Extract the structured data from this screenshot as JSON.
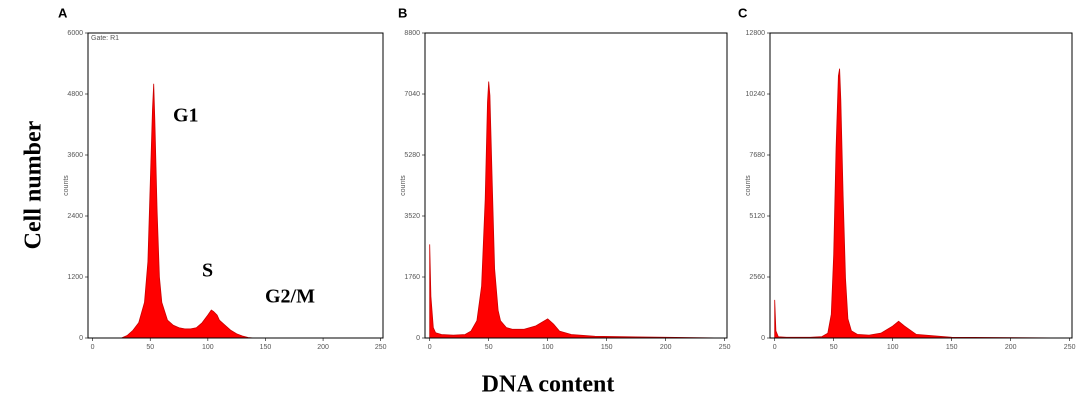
{
  "figure": {
    "y_label": "Cell number",
    "x_label": "DNA content"
  },
  "chart_data": [
    {
      "type": "area",
      "label": "A",
      "gate": "Gate: R1",
      "y_label": "counts",
      "color": "#ff0000",
      "xlim": [
        -4,
        252
      ],
      "xticks": [
        0,
        50,
        100,
        150,
        200,
        250
      ],
      "ylim": [
        0,
        6000
      ],
      "yticks": [
        0,
        1200,
        2400,
        3600,
        4800,
        6000
      ],
      "annotations": [
        "G1",
        "S",
        "G2/M"
      ],
      "x": [
        25,
        30,
        35,
        40,
        45,
        48,
        50,
        52,
        53,
        54,
        56,
        58,
        60,
        65,
        70,
        75,
        80,
        85,
        90,
        95,
        100,
        103,
        105,
        108,
        110,
        115,
        120,
        125,
        130,
        135,
        140
      ],
      "values": [
        0,
        50,
        150,
        300,
        700,
        1500,
        3000,
        4500,
        5000,
        4300,
        2500,
        1200,
        700,
        350,
        250,
        200,
        180,
        180,
        200,
        300,
        450,
        550,
        520,
        450,
        350,
        250,
        150,
        80,
        40,
        10,
        0
      ]
    },
    {
      "type": "area",
      "label": "B",
      "y_label": "counts",
      "color": "#ff0000",
      "xlim": [
        -4,
        252
      ],
      "xticks": [
        0,
        50,
        100,
        150,
        200,
        250
      ],
      "ylim": [
        0,
        8800
      ],
      "yticks": [
        0,
        1760,
        3520,
        5280,
        7040,
        8800
      ],
      "x": [
        0,
        1,
        3,
        5,
        10,
        20,
        30,
        35,
        40,
        44,
        47,
        49,
        50,
        51,
        53,
        55,
        58,
        60,
        65,
        70,
        80,
        90,
        95,
        100,
        105,
        110,
        120,
        140,
        200,
        250
      ],
      "values": [
        2700,
        1200,
        300,
        150,
        100,
        80,
        100,
        200,
        500,
        1500,
        4000,
        6800,
        7400,
        7000,
        4500,
        2000,
        800,
        500,
        300,
        250,
        250,
        350,
        450,
        550,
        400,
        200,
        100,
        50,
        20,
        0
      ]
    },
    {
      "type": "area",
      "label": "C",
      "y_label": "counts",
      "color": "#ff0000",
      "xlim": [
        -4,
        252
      ],
      "xticks": [
        0,
        50,
        100,
        150,
        200,
        250
      ],
      "ylim": [
        0,
        12800
      ],
      "yticks": [
        0,
        2560,
        5120,
        7680,
        10240,
        12800
      ],
      "x": [
        0,
        1,
        3,
        10,
        30,
        40,
        45,
        48,
        50,
        52,
        54,
        55,
        56,
        58,
        60,
        62,
        65,
        70,
        80,
        90,
        100,
        105,
        110,
        120,
        150,
        250
      ],
      "values": [
        1600,
        300,
        50,
        30,
        30,
        60,
        200,
        1000,
        3500,
        8000,
        11000,
        11300,
        10000,
        6000,
        2500,
        800,
        300,
        150,
        120,
        200,
        500,
        700,
        500,
        150,
        30,
        0
      ]
    }
  ]
}
